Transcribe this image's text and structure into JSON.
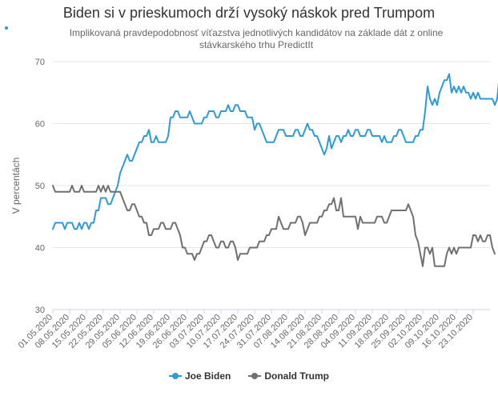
{
  "chart_data": {
    "type": "line",
    "title": "Biden si v prieskumoch drží vysoký náskok pred Trumpom",
    "subtitle": "Implikovaná pravdepodobnosť víťazstva jednotlivých kandidátov na základe dát z online stávkarského trhu PredictIt",
    "ylabel": "V percentách",
    "xlabel": "",
    "ylim": [
      30,
      70
    ],
    "yticks": [
      30,
      40,
      50,
      60,
      70
    ],
    "x_start": "01.05.2020",
    "x_end": "30.10.2020",
    "xticks": [
      "01.05.2020",
      "08.05.2020",
      "15.05.2020",
      "22.05.2020",
      "29.05.2020",
      "05.06.2020",
      "12.06.2020",
      "19.06.2020",
      "26.06.2020",
      "03.07.2020",
      "10.07.2020",
      "17.07.2020",
      "24.07.2020",
      "31.07.2020",
      "07.08.2020",
      "14.08.2020",
      "21.08.2020",
      "28.08.2020",
      "04.09.2020",
      "11.09.2020",
      "18.09.2020",
      "25.09.2020",
      "02.10.2020",
      "09.10.2020",
      "16.10.2020",
      "23.10.2020"
    ],
    "grid": "horizontal",
    "legend_position": "bottom-center",
    "series": [
      {
        "name": "Joe Biden",
        "color": "#2f9bd6",
        "values": [
          43,
          44,
          44,
          44,
          44,
          43,
          44,
          44,
          44,
          43,
          43,
          44,
          43,
          44,
          44,
          43,
          44,
          44,
          46,
          46,
          48,
          48,
          48,
          47,
          47,
          48,
          49,
          50,
          52,
          53,
          54,
          55,
          54,
          54,
          55,
          56,
          57,
          57,
          58,
          58,
          59,
          57,
          57,
          58,
          57,
          57,
          57,
          57,
          58,
          61,
          61,
          62,
          62,
          61,
          61,
          61,
          61,
          62,
          61,
          60,
          60,
          60,
          60,
          61,
          61,
          62,
          62,
          62,
          61,
          61,
          62,
          62,
          62,
          63,
          62,
          62,
          63,
          63,
          62,
          62,
          62,
          61,
          61,
          61,
          59,
          60,
          60,
          59,
          58,
          57,
          57,
          57,
          57,
          58,
          59,
          59,
          59,
          58,
          58,
          58,
          58,
          59,
          59,
          58,
          58,
          59,
          60,
          59,
          59,
          58,
          58,
          57,
          56,
          55,
          56,
          58,
          56,
          57,
          58,
          58,
          57,
          58,
          58,
          59,
          58,
          58,
          59,
          59,
          58,
          58,
          58,
          59,
          59,
          58,
          58,
          58,
          58,
          57,
          58,
          57,
          57,
          57,
          58,
          58,
          59,
          59,
          58,
          57,
          57,
          57,
          57,
          58,
          58,
          59,
          59,
          62,
          66,
          64,
          63,
          64,
          63,
          65,
          66,
          67,
          67,
          68,
          65,
          66,
          65,
          66,
          65,
          66,
          65,
          65,
          64,
          65,
          64,
          65,
          64,
          64,
          64,
          64,
          64,
          64,
          63,
          64,
          68
        ]
      },
      {
        "name": "Donald Trump",
        "color": "#707070",
        "values": [
          50,
          49,
          49,
          49,
          49,
          49,
          49,
          49,
          50,
          49,
          49,
          49,
          50,
          49,
          49,
          49,
          49,
          49,
          49,
          50,
          49,
          50,
          49,
          50,
          49,
          49,
          49,
          49,
          49,
          48,
          47,
          46,
          46,
          47,
          47,
          46,
          45,
          45,
          44,
          44,
          42,
          42,
          43,
          43,
          43,
          44,
          44,
          43,
          43,
          43,
          44,
          44,
          43,
          42,
          40,
          40,
          39,
          39,
          39,
          38,
          39,
          39,
          40,
          41,
          41,
          42,
          42,
          41,
          40,
          40,
          41,
          41,
          40,
          40,
          41,
          41,
          40,
          38,
          39,
          39,
          39,
          39,
          40,
          40,
          40,
          40,
          41,
          41,
          41,
          42,
          42,
          43,
          43,
          43,
          45,
          44,
          43,
          43,
          43,
          44,
          44,
          44,
          45,
          45,
          44,
          42,
          43,
          44,
          44,
          44,
          44,
          45,
          45,
          46,
          46,
          47,
          47,
          48,
          46,
          46,
          48,
          45,
          45,
          45,
          45,
          45,
          45,
          43,
          45,
          44,
          44,
          44,
          44,
          44,
          44,
          45,
          45,
          45,
          44,
          44,
          45,
          46,
          46,
          46,
          46,
          46,
          46,
          46,
          47,
          46,
          45,
          42,
          41,
          39,
          37,
          40,
          40,
          39,
          40,
          37,
          37,
          37,
          37,
          37,
          39,
          40,
          39,
          40,
          39,
          40,
          40,
          40,
          40,
          40,
          40,
          42,
          42,
          41,
          42,
          41,
          41,
          42,
          42,
          40,
          39
        ]
      }
    ]
  }
}
